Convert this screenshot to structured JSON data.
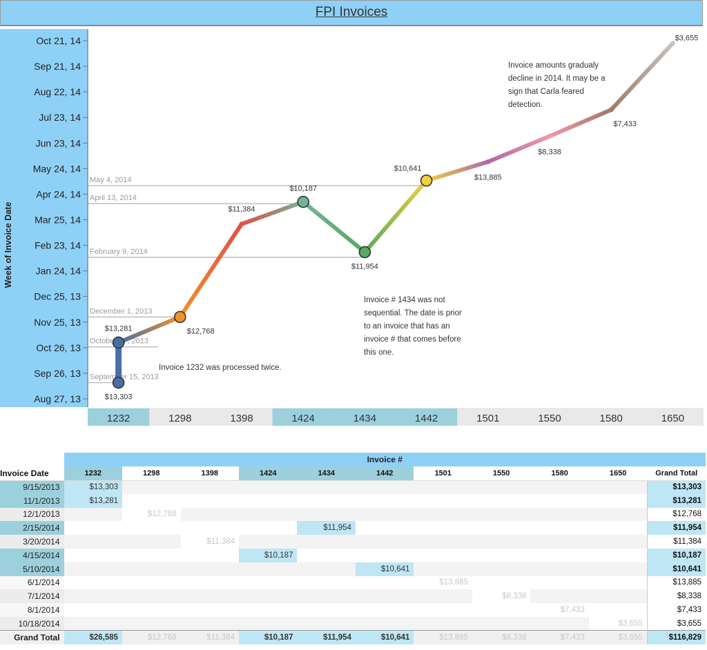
{
  "page_title": "FPI Invoices",
  "chart_data": {
    "type": "line",
    "y_axis_title": "Week of Invoice Date",
    "y_ticks": [
      "Oct 21, 14",
      "Sep 21, 14",
      "Aug 22, 14",
      "Jul 23, 14",
      "Jun 23, 14",
      "May 24, 14",
      "Apr 24, 14",
      "Mar 25, 14",
      "Feb 23, 14",
      "Jan 24, 14",
      "Dec 25, 13",
      "Nov 25, 13",
      "Oct 26, 13",
      "Sep 26, 13",
      "Aug 27, 13"
    ],
    "categories": [
      "1232",
      "1298",
      "1398",
      "1424",
      "1434",
      "1442",
      "1501",
      "1550",
      "1580",
      "1650"
    ],
    "highlighted_categories": [
      "1232",
      "1424",
      "1434",
      "1442"
    ],
    "points": [
      {
        "invoice": "1232",
        "date": "2013-09-15",
        "amount": "$13,303",
        "color": "#4a6fa5",
        "marker": true
      },
      {
        "invoice": "1232",
        "date": "2013-11-01",
        "amount": "$13,281",
        "color": "#4a6fa5",
        "marker": true
      },
      {
        "invoice": "1298",
        "date": "2013-12-01",
        "amount": "$12,768",
        "color": "#f0922b",
        "marker": true
      },
      {
        "invoice": "1398",
        "date": "2014-03-20",
        "amount": "$11,384",
        "color": "#e0504a",
        "marker": false
      },
      {
        "invoice": "1424",
        "date": "2014-04-15",
        "amount": "$10,187",
        "color": "#72b49a",
        "marker": true
      },
      {
        "invoice": "1434",
        "date": "2014-02-15",
        "amount": "$11,954",
        "color": "#5aa860",
        "marker": true
      },
      {
        "invoice": "1442",
        "date": "2014-05-10",
        "amount": "$10,641",
        "color": "#f0d040",
        "marker": true
      },
      {
        "invoice": "1501",
        "date": "2014-06-01",
        "amount": "$13,885",
        "color": "#b06aa8",
        "marker": false
      },
      {
        "invoice": "1550",
        "date": "2014-07-01",
        "amount": "$8,338",
        "color": "#f298a8",
        "marker": false
      },
      {
        "invoice": "1580",
        "date": "2014-08-01",
        "amount": "$7,433",
        "color": "#a07a64",
        "marker": false
      },
      {
        "invoice": "1650",
        "date": "2014-10-18",
        "amount": "$3,655",
        "color": "#c4c4c4",
        "marker": false
      }
    ],
    "reference_lines": [
      {
        "date": "2014-05-04",
        "label": "May 4, 2014"
      },
      {
        "date": "2014-04-13",
        "label": "April 13, 2014"
      },
      {
        "date": "2014-02-09",
        "label": "February 9, 2014"
      },
      {
        "date": "2013-12-01",
        "label": "December 1, 2013"
      },
      {
        "date": "2013-10-27",
        "label": "October 27, 2013"
      },
      {
        "date": "2013-09-15",
        "label": "September 15, 2013"
      }
    ],
    "annotations": [
      "Invoice amounts gradualy decline in 2014. It may be a sign that Carla feared detection.",
      "Invoice # 1434 was not sequential. The date is prior to an invoice that has an invoice # that comes before this one.",
      "Invoice 1232 was processed twice."
    ]
  },
  "table": {
    "super_header": "Invoice #",
    "row_header": "Invoice Date",
    "columns": [
      "1232",
      "1298",
      "1398",
      "1424",
      "1434",
      "1442",
      "1501",
      "1550",
      "1580",
      "1650"
    ],
    "highlight_columns": [
      0,
      3,
      4,
      5
    ],
    "grand_total_label": "Grand Total",
    "rows": [
      {
        "date": "9/15/2013",
        "col": 0,
        "value": "$13,303",
        "total": "$13,303",
        "strong": true,
        "date_hl": true
      },
      {
        "date": "11/1/2013",
        "col": 0,
        "value": "$13,281",
        "total": "$13,281",
        "strong": true,
        "date_hl": true
      },
      {
        "date": "12/1/2013",
        "col": 1,
        "value": "$12,768",
        "total": "$12,768",
        "strong": false,
        "date_hl": false
      },
      {
        "date": "2/15/2014",
        "col": 4,
        "value": "$11,954",
        "total": "$11,954",
        "strong": true,
        "date_hl": true
      },
      {
        "date": "3/20/2014",
        "col": 2,
        "value": "$11,384",
        "total": "$11,384",
        "strong": false,
        "date_hl": false
      },
      {
        "date": "4/15/2014",
        "col": 3,
        "value": "$10,187",
        "total": "$10,187",
        "strong": true,
        "date_hl": true
      },
      {
        "date": "5/10/2014",
        "col": 5,
        "value": "$10,641",
        "total": "$10,641",
        "strong": true,
        "date_hl": true
      },
      {
        "date": "6/1/2014",
        "col": 6,
        "value": "$13,885",
        "total": "$13,885",
        "strong": false,
        "date_hl": false
      },
      {
        "date": "7/1/2014",
        "col": 7,
        "value": "$8,338",
        "total": "$8,338",
        "strong": false,
        "date_hl": false
      },
      {
        "date": "8/1/2014",
        "col": 8,
        "value": "$7,433",
        "total": "$7,433",
        "strong": false,
        "date_hl": false
      },
      {
        "date": "10/18/2014",
        "col": 9,
        "value": "$3,655",
        "total": "$3,655",
        "strong": false,
        "date_hl": false
      }
    ],
    "totals": [
      "$26,585",
      "$12,768",
      "$11,384",
      "$10,187",
      "$11,954",
      "$10,641",
      "$13,885",
      "$8,338",
      "$7,433",
      "$3,655"
    ],
    "grand_total": "$116,829"
  }
}
